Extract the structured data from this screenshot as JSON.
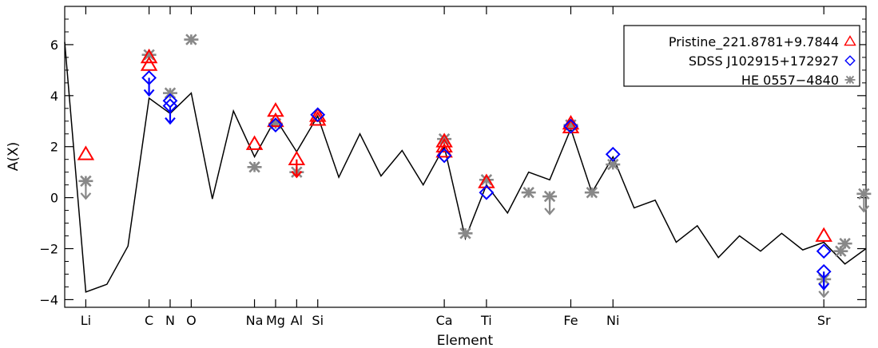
{
  "chart_data": {
    "type": "scatter",
    "xlabel": "Element",
    "ylabel": "A(X)",
    "xlim": [
      2,
      40
    ],
    "ylim": [
      -4.3,
      7.5
    ],
    "y_ticks": [
      -4,
      -2,
      0,
      2,
      4,
      6
    ],
    "x_ticks": [
      {
        "label": "Li",
        "z": 3
      },
      {
        "label": "C",
        "z": 6
      },
      {
        "label": "N",
        "z": 7
      },
      {
        "label": "O",
        "z": 8
      },
      {
        "label": "Na",
        "z": 11
      },
      {
        "label": "Mg",
        "z": 12
      },
      {
        "label": "Al",
        "z": 13
      },
      {
        "label": "Si",
        "z": 14
      },
      {
        "label": "Ca",
        "z": 20
      },
      {
        "label": "Ti",
        "z": 22
      },
      {
        "label": "Fe",
        "z": 26
      },
      {
        "label": "Ni",
        "z": 28
      },
      {
        "label": "Sr",
        "z": 38
      }
    ],
    "legend": {
      "position": "top-right",
      "entries": [
        {
          "name": "Pristine_221.8781+9.7844",
          "marker": "triangle",
          "color": "#ff0000"
        },
        {
          "name": "SDSS J102915+172927",
          "marker": "diamond",
          "color": "#0000ff"
        },
        {
          "name": "HE 0557−4840",
          "marker": "asterisk",
          "color": "#888888"
        }
      ]
    },
    "model_line": {
      "color": "#000000",
      "x": [
        2,
        3,
        4,
        5,
        6,
        7,
        8,
        9,
        10,
        11,
        12,
        13,
        14,
        15,
        16,
        17,
        18,
        19,
        20,
        21,
        22,
        23,
        24,
        25,
        26,
        27,
        28,
        29,
        30,
        31,
        32,
        33,
        34,
        35,
        36,
        37,
        38,
        39,
        40
      ],
      "y": [
        6.1,
        -3.7,
        -3.4,
        -1.9,
        3.9,
        3.3,
        4.1,
        -0.05,
        3.4,
        1.6,
        3.1,
        1.8,
        3.2,
        0.8,
        2.5,
        0.85,
        1.85,
        0.5,
        2.0,
        -1.6,
        0.5,
        -0.6,
        1.0,
        0.7,
        2.7,
        0.2,
        1.6,
        -0.4,
        -0.1,
        -1.75,
        -1.1,
        -2.35,
        -1.5,
        -2.1,
        -1.4,
        -2.05,
        -1.75,
        -2.6,
        -2.0
      ]
    },
    "series": [
      {
        "name": "Pristine_221.8781+9.7844",
        "marker": "triangle",
        "color": "#ff0000",
        "points": [
          {
            "x": 3,
            "y": 1.7
          },
          {
            "x": 6,
            "y": 5.5
          },
          {
            "x": 6,
            "y": 5.2
          },
          {
            "x": 11,
            "y": 2.1
          },
          {
            "x": 12,
            "y": 3.4
          },
          {
            "x": 12,
            "y": 3.0
          },
          {
            "x": 13,
            "y": 1.5,
            "upper_limit": true
          },
          {
            "x": 14,
            "y": 3.2
          },
          {
            "x": 14,
            "y": 3.05
          },
          {
            "x": 20,
            "y": 2.2
          },
          {
            "x": 20,
            "y": 2.0
          },
          {
            "x": 20,
            "y": 1.8
          },
          {
            "x": 22,
            "y": 0.6
          },
          {
            "x": 26,
            "y": 2.9
          },
          {
            "x": 26,
            "y": 2.75
          },
          {
            "x": 38,
            "y": -1.5
          }
        ]
      },
      {
        "name": "SDSS J102915+172927",
        "marker": "diamond",
        "color": "#0000ff",
        "points": [
          {
            "x": 6,
            "y": 4.7,
            "upper_limit": true
          },
          {
            "x": 7,
            "y": 3.8
          },
          {
            "x": 7,
            "y": 3.6,
            "upper_limit": true
          },
          {
            "x": 12,
            "y": 2.85
          },
          {
            "x": 14,
            "y": 3.25
          },
          {
            "x": 20,
            "y": 1.65
          },
          {
            "x": 22,
            "y": 0.2
          },
          {
            "x": 26,
            "y": 2.8
          },
          {
            "x": 28,
            "y": 1.7
          },
          {
            "x": 38,
            "y": -2.1
          },
          {
            "x": 38,
            "y": -2.9,
            "upper_limit": true
          }
        ]
      },
      {
        "name": "HE 0557−4840",
        "marker": "asterisk",
        "color": "#888888",
        "points": [
          {
            "x": 3,
            "y": 0.65,
            "upper_limit": true
          },
          {
            "x": 6,
            "y": 5.6
          },
          {
            "x": 7,
            "y": 4.1
          },
          {
            "x": 8,
            "y": 6.2
          },
          {
            "x": 11,
            "y": 1.2
          },
          {
            "x": 12,
            "y": 2.9
          },
          {
            "x": 13,
            "y": 1.0
          },
          {
            "x": 20,
            "y": 2.3
          },
          {
            "x": 21,
            "y": -1.4
          },
          {
            "x": 22,
            "y": 0.7
          },
          {
            "x": 24,
            "y": 0.2
          },
          {
            "x": 25,
            "y": 0.05,
            "upper_limit": true
          },
          {
            "x": 26,
            "y": 2.85
          },
          {
            "x": 27,
            "y": 0.2
          },
          {
            "x": 28,
            "y": 1.3
          },
          {
            "x": 38,
            "y": -3.2,
            "upper_limit": true
          },
          {
            "x": 38.8,
            "y": -2.1
          },
          {
            "x": 39,
            "y": -1.8
          },
          {
            "x": 39.9,
            "y": 0.15,
            "upper_limit": true
          }
        ]
      }
    ]
  }
}
